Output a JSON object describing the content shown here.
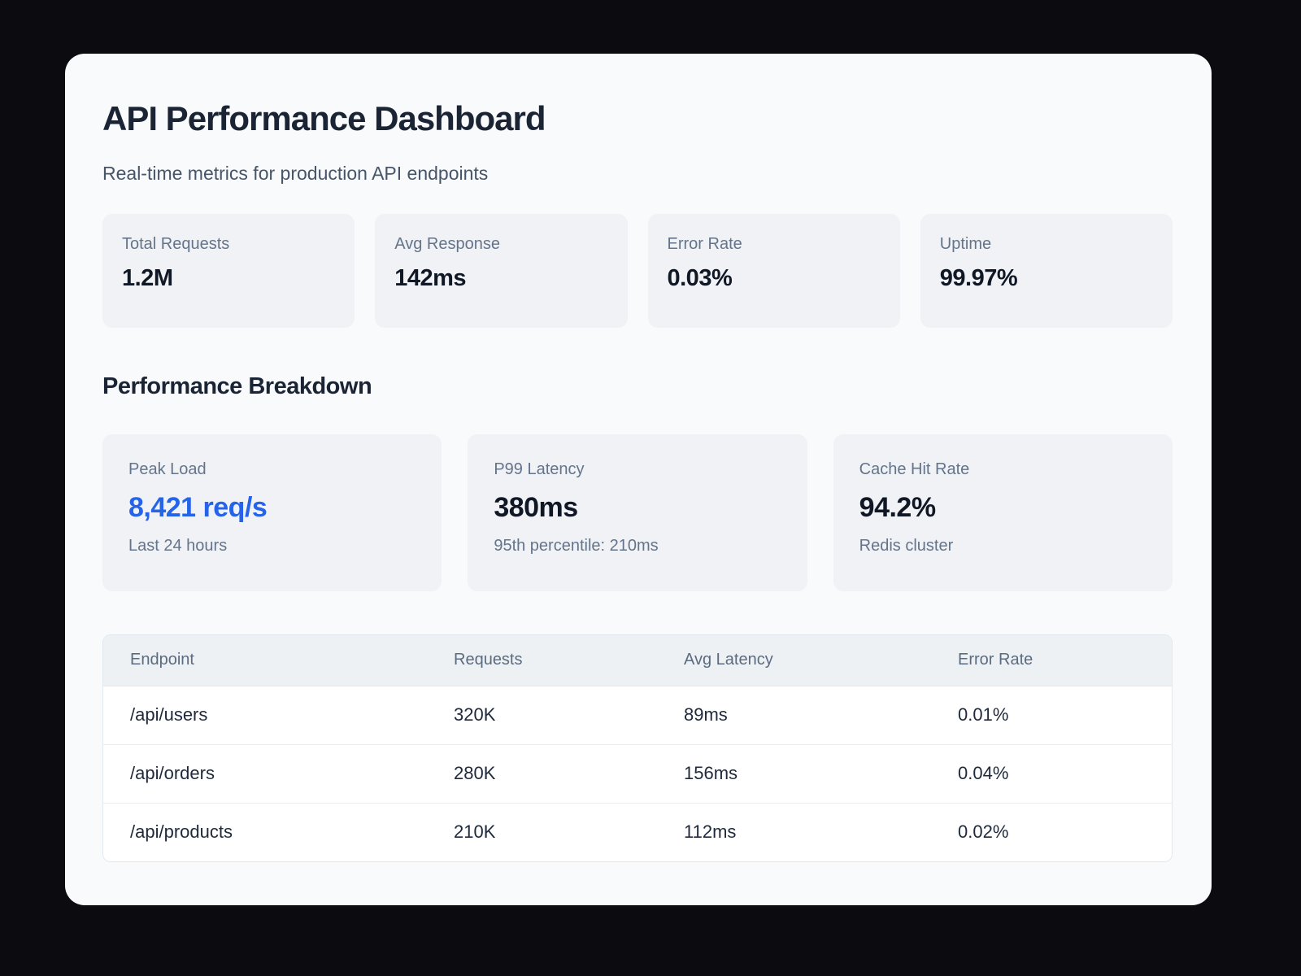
{
  "page": {
    "title": "API Performance Dashboard",
    "subtitle": "Real-time metrics for production API endpoints"
  },
  "colors": {
    "page_bg": "#0b0b10",
    "card_bg": "#f8fafc",
    "tile_bg": "#f0f2f5",
    "accent_blue": "#2563eb",
    "heading_text": "#1b2434",
    "label_text": "#64748b",
    "table_border": "#e2e8f0"
  },
  "stats": [
    {
      "label": "Total Requests",
      "value": "1.2M"
    },
    {
      "label": "Avg Response",
      "value": "142ms"
    },
    {
      "label": "Error Rate",
      "value": "0.03%"
    },
    {
      "label": "Uptime",
      "value": "99.97%"
    }
  ],
  "breakdown": {
    "heading": "Performance Breakdown",
    "cards": [
      {
        "label": "Peak Load",
        "value": "8,421 req/s",
        "sub": "Last 24 hours",
        "highlight": true
      },
      {
        "label": "P99 Latency",
        "value": "380ms",
        "sub": "95th percentile: 210ms",
        "highlight": false
      },
      {
        "label": "Cache Hit Rate",
        "value": "94.2%",
        "sub": "Redis cluster",
        "highlight": false
      }
    ]
  },
  "table": {
    "columns": [
      "Endpoint",
      "Requests",
      "Avg Latency",
      "Error Rate"
    ],
    "rows": [
      [
        "/api/users",
        "320K",
        "89ms",
        "0.01%"
      ],
      [
        "/api/orders",
        "280K",
        "156ms",
        "0.04%"
      ],
      [
        "/api/products",
        "210K",
        "112ms",
        "0.02%"
      ]
    ]
  }
}
